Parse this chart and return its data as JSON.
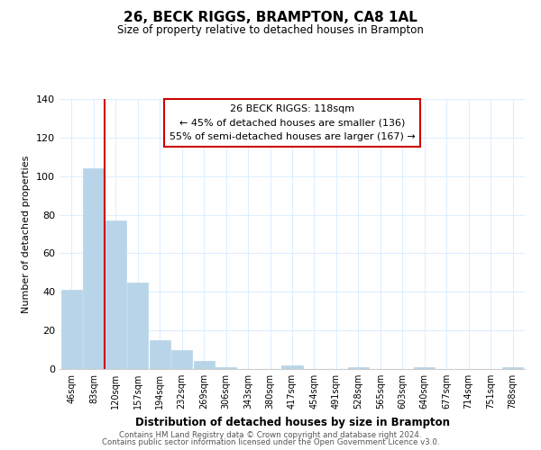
{
  "title": "26, BECK RIGGS, BRAMPTON, CA8 1AL",
  "subtitle": "Size of property relative to detached houses in Brampton",
  "xlabel": "Distribution of detached houses by size in Brampton",
  "ylabel": "Number of detached properties",
  "bar_labels": [
    "46sqm",
    "83sqm",
    "120sqm",
    "157sqm",
    "194sqm",
    "232sqm",
    "269sqm",
    "306sqm",
    "343sqm",
    "380sqm",
    "417sqm",
    "454sqm",
    "491sqm",
    "528sqm",
    "565sqm",
    "603sqm",
    "640sqm",
    "677sqm",
    "714sqm",
    "751sqm",
    "788sqm"
  ],
  "bar_values": [
    41,
    104,
    77,
    45,
    15,
    10,
    4,
    1,
    0,
    0,
    2,
    0,
    0,
    1,
    0,
    0,
    1,
    0,
    0,
    0,
    1
  ],
  "bar_color": "#b8d4e8",
  "bar_edge_color": "#b8d4e8",
  "vline_color": "#cc0000",
  "vline_x_index": 1.5,
  "ylim": [
    0,
    140
  ],
  "yticks": [
    0,
    20,
    40,
    60,
    80,
    100,
    120,
    140
  ],
  "annotation_title": "26 BECK RIGGS: 118sqm",
  "annotation_line1": "← 45% of detached houses are smaller (136)",
  "annotation_line2": "55% of semi-detached houses are larger (167) →",
  "annotation_box_color": "#ffffff",
  "annotation_box_edge": "#cc0000",
  "footer_line1": "Contains HM Land Registry data © Crown copyright and database right 2024.",
  "footer_line2": "Contains public sector information licensed under the Open Government Licence v3.0.",
  "background_color": "#ffffff",
  "grid_color": "#ddeeff"
}
